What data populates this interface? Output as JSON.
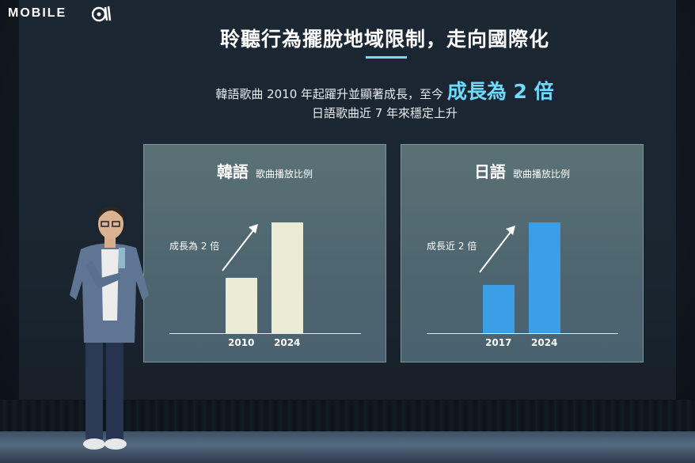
{
  "watermark": {
    "text": "MOBILE",
    "icon": "owl-logo-icon"
  },
  "slide": {
    "title": "聆聽行為擺脫地域限制，走向國際化",
    "subtitle_prefix": "韓語歌曲 2010 年起躍升並顯著成長，至今",
    "subtitle_highlight": "成長為 2 倍",
    "subtitle2": "日語歌曲近 7 年來穩定上升",
    "colors": {
      "accent": "#6fdcff",
      "korean_bar": "#ecebd6",
      "japanese_bar": "#3d9ee8"
    }
  },
  "panels": [
    {
      "language": "韓語",
      "caption": "歌曲播放比例",
      "growth_label": "成長為 2 倍",
      "chart_data": {
        "type": "bar",
        "categories": [
          "2010",
          "2024"
        ],
        "values": [
          1,
          2
        ],
        "ylim": [
          0,
          2
        ]
      }
    },
    {
      "language": "日語",
      "caption": "歌曲播放比例",
      "growth_label": "成長近 2 倍",
      "chart_data": {
        "type": "bar",
        "categories": [
          "2017",
          "2024"
        ],
        "values": [
          1,
          2.3
        ],
        "ylim": [
          0,
          2.3
        ]
      }
    }
  ]
}
